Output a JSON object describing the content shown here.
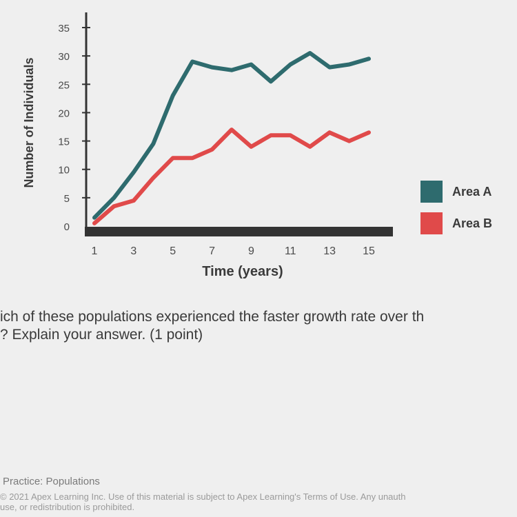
{
  "chart_data": {
    "type": "line",
    "xlabel": "Time (years)",
    "ylabel": "Number of Individuals",
    "ylim": [
      0,
      35
    ],
    "xlim": [
      1,
      15
    ],
    "yticks": [
      0,
      5,
      10,
      15,
      20,
      25,
      30,
      35
    ],
    "xticks": [
      1,
      3,
      5,
      7,
      9,
      11,
      13,
      15
    ],
    "grid": false,
    "legend_position": "right",
    "x": [
      1,
      2,
      3,
      4,
      5,
      6,
      7,
      8,
      9,
      10,
      11,
      12,
      13,
      14,
      15
    ],
    "series": [
      {
        "name": "Area A",
        "color": "#2e6b6e",
        "values": [
          1.5,
          5,
          9.5,
          14.5,
          23,
          29,
          28,
          27.5,
          28.5,
          25.5,
          28.5,
          30.5,
          28,
          28.5,
          29.5
        ]
      },
      {
        "name": "Area B",
        "color": "#e04a4a",
        "values": [
          0.5,
          3.5,
          4.5,
          8.5,
          12,
          12,
          13.5,
          17,
          14,
          16,
          16,
          14,
          16.5,
          15,
          16.5
        ]
      }
    ]
  },
  "question": {
    "line1": "ich of these populations experienced the faster growth rate over th",
    "line2": "? Explain your answer. (1 point)"
  },
  "footer": {
    "title": "Practice: Populations",
    "copyright_line1": "© 2021 Apex Learning Inc. Use of this material is subject to Apex Learning's Terms of Use. Any unauth",
    "copyright_line2": "use, or redistribution is prohibited."
  }
}
